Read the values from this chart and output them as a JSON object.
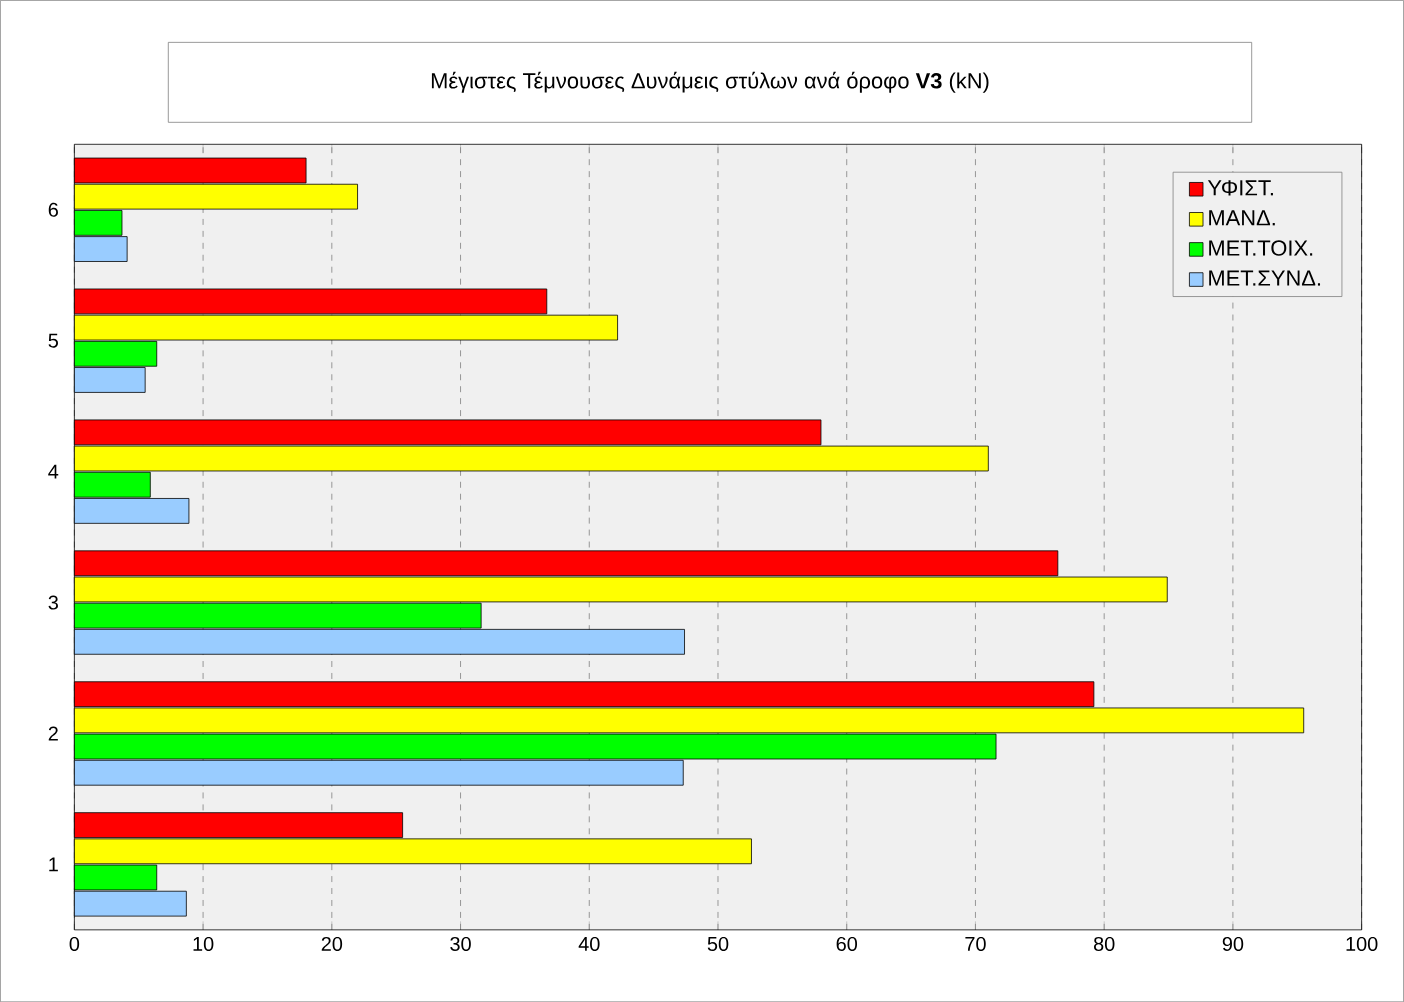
{
  "chart_data": {
    "type": "bar",
    "orientation": "horizontal",
    "title": "Μέγιστες Τέμνουσες Δυνάμεις στύλων ανά όροφο **V3** (kN)",
    "categories": [
      "6",
      "5",
      "4",
      "3",
      "2",
      "1"
    ],
    "series": [
      {
        "name": "ΥΦΙΣΤ.",
        "color": "#ff0000",
        "values": [
          18.0,
          36.7,
          58.0,
          76.4,
          79.2,
          25.5
        ]
      },
      {
        "name": "ΜΑΝΔ.",
        "color": "#ffff00",
        "values": [
          22.0,
          42.2,
          71.0,
          84.9,
          95.5,
          52.6
        ]
      },
      {
        "name": "ΜΕΤ.ΤΟΙΧ.",
        "color": "#00ff00",
        "values": [
          3.7,
          6.4,
          5.9,
          31.6,
          71.6,
          6.4
        ]
      },
      {
        "name": "ΜΕΤ.ΣΥΝΔ.",
        "color": "#99ccff",
        "values": [
          4.1,
          5.5,
          8.9,
          47.4,
          47.3,
          8.7
        ]
      }
    ],
    "xlim": [
      0,
      100
    ],
    "xticks": [
      0,
      10,
      20,
      30,
      40,
      50,
      60,
      70,
      80,
      90,
      100
    ],
    "grid": "x",
    "legend": "top right"
  }
}
